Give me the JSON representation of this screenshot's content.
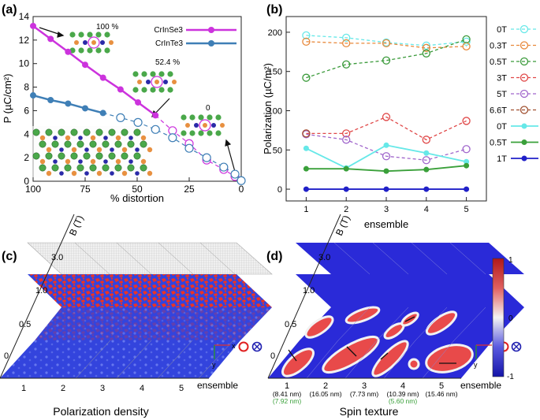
{
  "panel_labels": {
    "a": "(a)",
    "b": "(b)",
    "c": "(c)",
    "d": "(d)"
  },
  "chart_data": [
    {
      "panel": "(a)",
      "type": "line",
      "xlabel": "% distortion",
      "ylabel": "P (µC/cm²)",
      "xlim": [
        100,
        0
      ],
      "ylim": [
        0,
        14
      ],
      "xticks": [
        100,
        75,
        50,
        25,
        0
      ],
      "yticks": [
        0,
        2,
        4,
        6,
        8,
        10,
        12,
        14
      ],
      "legend_position": "top-right",
      "annotations": [
        "100 %",
        "52.4 %",
        "0"
      ],
      "series": [
        {
          "name": "CrInSe3",
          "color": "#cc33dd",
          "solid": {
            "x": [
              100,
              91.6,
              83.2,
              75,
              66.4,
              58,
              49.6,
              41.2
            ],
            "y": [
              13.2,
              12.1,
              11.0,
              9.9,
              8.8,
              7.8,
              6.7,
              5.6
            ]
          },
          "dashed": {
            "x": [
              33,
              25,
              16.6,
              8.4,
              3
            ],
            "y": [
              4.3,
              3.2,
              1.8,
              1.0,
              0.4
            ]
          }
        },
        {
          "name": "CrInTe3",
          "color": "#3f7fb6",
          "solid": {
            "x": [
              100,
              91.6,
              83.2,
              75,
              66.4
            ],
            "y": [
              7.3,
              6.9,
              6.6,
              6.2,
              5.8
            ]
          },
          "dashed": {
            "x": [
              58,
              49.6,
              41.2,
              33,
              25,
              16.6,
              8.4,
              3,
              0
            ],
            "y": [
              5.4,
              5.0,
              4.4,
              3.7,
              2.8,
              2.0,
              1.2,
              0.6,
              0.05
            ]
          }
        }
      ]
    },
    {
      "panel": "(b)",
      "type": "line",
      "xlabel": "ensemble",
      "ylabel": "Polarization (µC/m²)",
      "xlim": [
        0.5,
        5.5
      ],
      "ylim": [
        -15,
        220
      ],
      "x": [
        1,
        2,
        3,
        4,
        5
      ],
      "xticks": [
        1,
        2,
        3,
        4,
        5
      ],
      "yticks": [
        0,
        50,
        100,
        150,
        200
      ],
      "legend_position": "right",
      "series": [
        {
          "name": "0T",
          "color": "#66e8e8",
          "style": "dashed-open",
          "values": [
            196,
            193,
            187,
            183,
            188
          ]
        },
        {
          "name": "0.3T",
          "color": "#e8883a",
          "style": "dashed-open",
          "values": [
            188,
            186,
            186,
            180,
            182
          ]
        },
        {
          "name": "0.5T",
          "color": "#3a9a3a",
          "style": "dashed-open",
          "values": [
            142,
            159,
            164,
            173,
            191
          ]
        },
        {
          "name": "3T",
          "color": "#e04848",
          "style": "dashed-open",
          "values": [
            71,
            71,
            92,
            63,
            87
          ]
        },
        {
          "name": "5T",
          "color": "#a066cc",
          "style": "dashed-open",
          "values": [
            70,
            63,
            42,
            37,
            51
          ]
        },
        {
          "name": "6.6T",
          "color": "#a05030",
          "style": "dashed-open",
          "values": [
            71,
            null,
            null,
            null,
            null
          ]
        },
        {
          "name": "0T",
          "color": "#66e8e8",
          "style": "solid-filled",
          "values": [
            52,
            27,
            56,
            46,
            35
          ]
        },
        {
          "name": "0.5T",
          "color": "#3aa03a",
          "style": "solid-filled",
          "values": [
            26,
            26,
            23,
            25,
            30
          ]
        },
        {
          "name": "1T",
          "color": "#2020c8",
          "style": "solid-filled",
          "values": [
            0,
            0,
            0,
            0,
            0
          ]
        }
      ]
    }
  ],
  "panel_c": {
    "axis_label": "B (T)",
    "b_labels": [
      "3.0",
      "1.0",
      "0.5",
      "0"
    ],
    "ensemble_labels": [
      "1",
      "2",
      "3",
      "4",
      "5"
    ],
    "ensemble_axis": "ensemble",
    "caption": "Polarization density",
    "axes_x": "x",
    "axes_y": "y"
  },
  "panel_d": {
    "axis_label": "B (T)",
    "b_labels": [
      "3.0",
      "1.0",
      "0.5",
      "0"
    ],
    "ensemble_labels": [
      "1",
      "2",
      "3",
      "4",
      "5"
    ],
    "ensemble_axis": "ensemble",
    "caption": "Spin texture",
    "sizes": [
      "(8.41 nm)",
      "(16.05 nm)",
      "(7.73 nm)",
      "(10.39 nm)",
      "(15.46 nm)"
    ],
    "sizes_green": [
      "(7.92 nm)",
      "",
      "",
      "(5.60 nm)",
      ""
    ],
    "colorbar_ticks": [
      "1",
      "0",
      "-1"
    ],
    "axes_x": "x",
    "axes_y": "y"
  }
}
